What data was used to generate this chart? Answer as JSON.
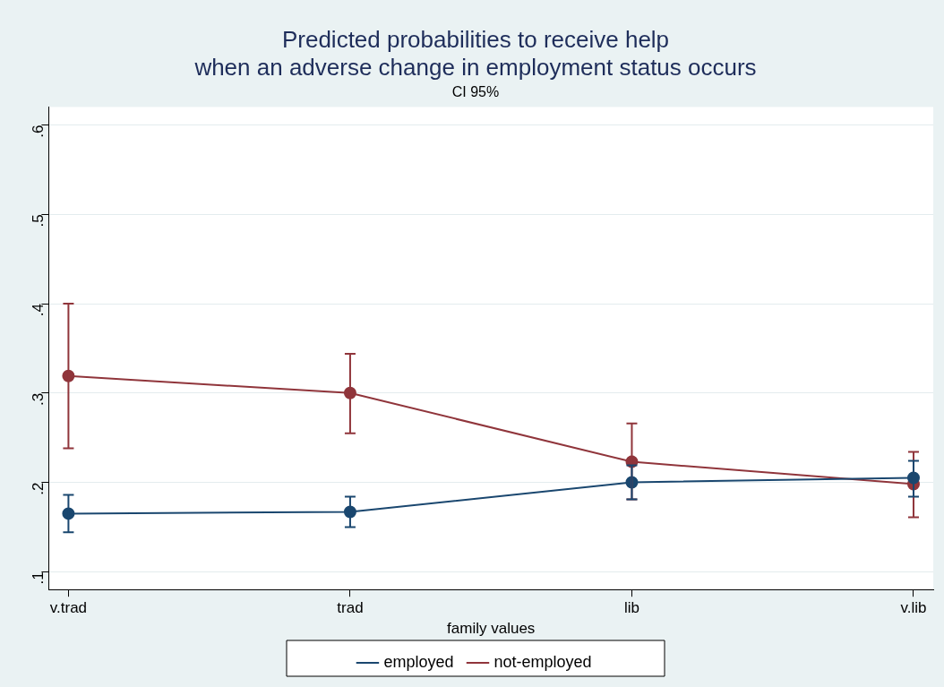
{
  "chart_data": {
    "type": "line",
    "title": [
      "Predicted probabilities to receive help",
      "when an adverse change in employment status occurs"
    ],
    "subtitle": "CI 95%",
    "xlabel": "family values",
    "categories": [
      "v.trad",
      "trad",
      "lib",
      "v.lib"
    ],
    "series": [
      {
        "name": "employed",
        "color": "#1a476f",
        "values": [
          0.165,
          0.167,
          0.2,
          0.205
        ],
        "errors": [
          [
            0.144,
            0.186
          ],
          [
            0.15,
            0.184
          ],
          [
            0.181,
            0.219
          ],
          [
            0.184,
            0.224
          ]
        ]
      },
      {
        "name": "not-employed",
        "color": "#90353b",
        "values": [
          0.319,
          0.3,
          0.223,
          0.198
        ],
        "errors": [
          [
            0.238,
            0.4
          ],
          [
            0.255,
            0.344
          ],
          [
            0.181,
            0.266
          ],
          [
            0.161,
            0.234
          ]
        ]
      }
    ],
    "ylim": [
      0.08,
      0.62
    ],
    "yticks": [
      {
        "value": 0.1,
        "label": ".1"
      },
      {
        "value": 0.2,
        "label": ".2"
      },
      {
        "value": 0.3,
        "label": ".3"
      },
      {
        "value": 0.4,
        "label": ".4"
      },
      {
        "value": 0.5,
        "label": ".5"
      },
      {
        "value": 0.6,
        "label": ".6"
      }
    ],
    "grid": "y",
    "legend": "bottom",
    "marker": "circle",
    "line_style": "solid"
  }
}
